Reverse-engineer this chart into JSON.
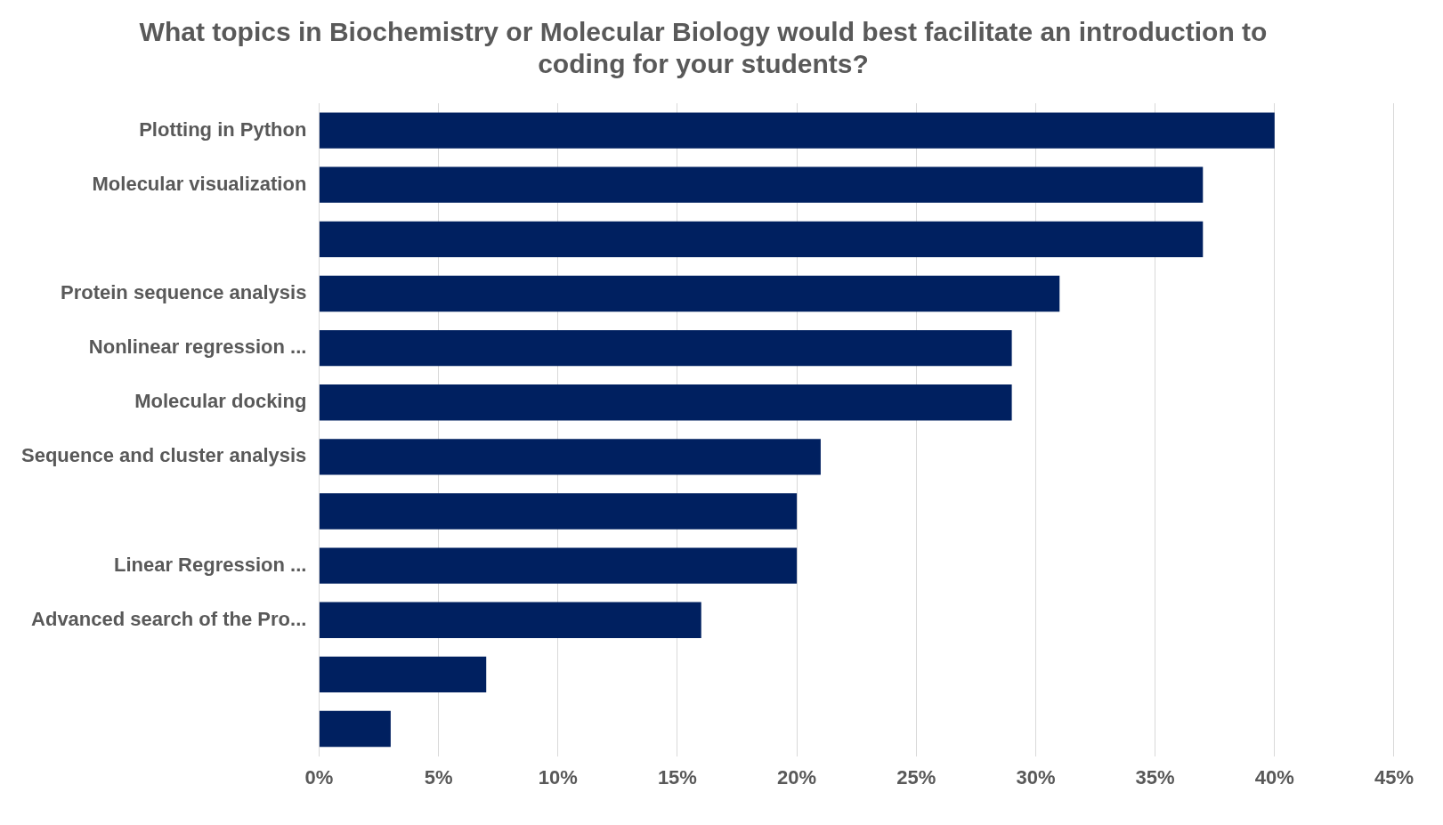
{
  "chart_data": {
    "type": "bar",
    "orientation": "horizontal",
    "title": "What topics in Biochemistry or Molecular Biology would best facilitate an introduction to coding for your students?",
    "categories": [
      "Plotting in Python",
      "Molecular visualization",
      null,
      "Protein sequence analysis",
      "Nonlinear regression ...",
      "Molecular docking",
      "Sequence and cluster analysis",
      null,
      "Linear Regression ...",
      "Advanced search of the Pro...",
      null,
      null
    ],
    "values": [
      40,
      37,
      37,
      31,
      29,
      29,
      21,
      20,
      20,
      16,
      7,
      3
    ],
    "color": "#002060",
    "xlim": [
      0,
      45
    ],
    "xticks": [
      {
        "value": 0,
        "label": "0%"
      },
      {
        "value": 5,
        "label": "5%"
      },
      {
        "value": 10,
        "label": "10%"
      },
      {
        "value": 15,
        "label": "15%"
      },
      {
        "value": 20,
        "label": "20%"
      },
      {
        "value": 25,
        "label": "25%"
      },
      {
        "value": 30,
        "label": "30%"
      },
      {
        "value": 35,
        "label": "35%"
      },
      {
        "value": 40,
        "label": "40%"
      },
      {
        "value": 45,
        "label": "45%"
      }
    ],
    "grid": "x",
    "legend": false
  }
}
